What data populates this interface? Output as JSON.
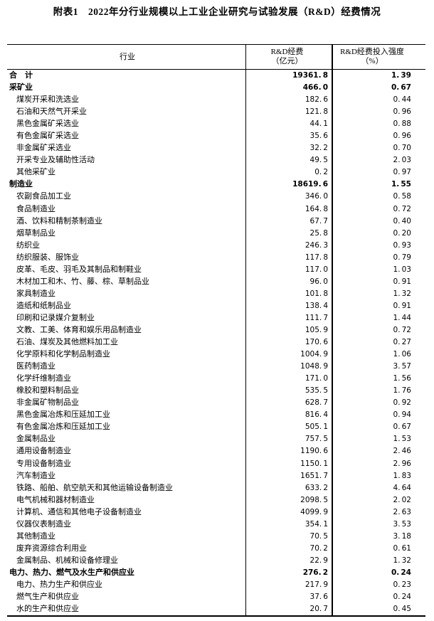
{
  "page": {
    "title": "附表1　2022年分行业规模以上工业企业研究与试验发展（R&D）经费情况"
  },
  "colors": {
    "text": "#000000",
    "border": "#000000",
    "background": "#ffffff"
  },
  "table": {
    "columns": {
      "industry": "行业",
      "expenditure_line1": "R&D经费",
      "expenditure_line2": "（亿元）",
      "intensity_line1": "R&D经费投入强度",
      "intensity_line2": "（%）"
    },
    "rows": [
      {
        "industry": "合　计",
        "expenditure": "19361.8",
        "intensity": "1.39",
        "section": true,
        "indent": 0
      },
      {
        "industry": "采矿业",
        "expenditure": "466.0",
        "intensity": "0.67",
        "section": true,
        "indent": 0
      },
      {
        "industry": "煤炭开采和洗选业",
        "expenditure": "182.6",
        "intensity": "0.44",
        "section": false,
        "indent": 1
      },
      {
        "industry": "石油和天然气开采业",
        "expenditure": "121.8",
        "intensity": "0.96",
        "section": false,
        "indent": 1
      },
      {
        "industry": "黑色金属矿采选业",
        "expenditure": "44.1",
        "intensity": "0.88",
        "section": false,
        "indent": 1
      },
      {
        "industry": "有色金属矿采选业",
        "expenditure": "35.6",
        "intensity": "0.96",
        "section": false,
        "indent": 1
      },
      {
        "industry": "非金属矿采选业",
        "expenditure": "32.2",
        "intensity": "0.70",
        "section": false,
        "indent": 1
      },
      {
        "industry": "开采专业及辅助性活动",
        "expenditure": "49.5",
        "intensity": "2.03",
        "section": false,
        "indent": 1
      },
      {
        "industry": "其他采矿业",
        "expenditure": "0.2",
        "intensity": "0.97",
        "section": false,
        "indent": 1
      },
      {
        "industry": "制造业",
        "expenditure": "18619.6",
        "intensity": "1.55",
        "section": true,
        "indent": 0
      },
      {
        "industry": "农副食品加工业",
        "expenditure": "346.0",
        "intensity": "0.58",
        "section": false,
        "indent": 1
      },
      {
        "industry": "食品制造业",
        "expenditure": "164.8",
        "intensity": "0.72",
        "section": false,
        "indent": 1
      },
      {
        "industry": "酒、饮料和精制茶制造业",
        "expenditure": "67.7",
        "intensity": "0.40",
        "section": false,
        "indent": 1
      },
      {
        "industry": "烟草制品业",
        "expenditure": "25.8",
        "intensity": "0.20",
        "section": false,
        "indent": 1
      },
      {
        "industry": "纺织业",
        "expenditure": "246.3",
        "intensity": "0.93",
        "section": false,
        "indent": 1
      },
      {
        "industry": "纺织服装、服饰业",
        "expenditure": "117.8",
        "intensity": "0.79",
        "section": false,
        "indent": 1
      },
      {
        "industry": "皮革、毛皮、羽毛及其制品和制鞋业",
        "expenditure": "117.0",
        "intensity": "1.03",
        "section": false,
        "indent": 1
      },
      {
        "industry": "木材加工和木、竹、藤、棕、草制品业",
        "expenditure": "96.0",
        "intensity": "0.91",
        "section": false,
        "indent": 1
      },
      {
        "industry": "家具制造业",
        "expenditure": "101.8",
        "intensity": "1.32",
        "section": false,
        "indent": 1
      },
      {
        "industry": "造纸和纸制品业",
        "expenditure": "138.4",
        "intensity": "0.91",
        "section": false,
        "indent": 1
      },
      {
        "industry": "印刷和记录媒介复制业",
        "expenditure": "111.7",
        "intensity": "1.44",
        "section": false,
        "indent": 1
      },
      {
        "industry": "文教、工美、体育和娱乐用品制造业",
        "expenditure": "105.9",
        "intensity": "0.72",
        "section": false,
        "indent": 1
      },
      {
        "industry": "石油、煤炭及其他燃料加工业",
        "expenditure": "170.6",
        "intensity": "0.27",
        "section": false,
        "indent": 1
      },
      {
        "industry": "化学原料和化学制品制造业",
        "expenditure": "1004.9",
        "intensity": "1.06",
        "section": false,
        "indent": 1
      },
      {
        "industry": "医药制造业",
        "expenditure": "1048.9",
        "intensity": "3.57",
        "section": false,
        "indent": 1
      },
      {
        "industry": "化学纤维制造业",
        "expenditure": "171.0",
        "intensity": "1.56",
        "section": false,
        "indent": 1
      },
      {
        "industry": "橡胶和塑料制品业",
        "expenditure": "535.5",
        "intensity": "1.76",
        "section": false,
        "indent": 1
      },
      {
        "industry": "非金属矿物制品业",
        "expenditure": "628.7",
        "intensity": "0.92",
        "section": false,
        "indent": 1
      },
      {
        "industry": "黑色金属冶炼和压延加工业",
        "expenditure": "816.4",
        "intensity": "0.94",
        "section": false,
        "indent": 1
      },
      {
        "industry": "有色金属冶炼和压延加工业",
        "expenditure": "505.1",
        "intensity": "0.67",
        "section": false,
        "indent": 1
      },
      {
        "industry": "金属制品业",
        "expenditure": "757.5",
        "intensity": "1.53",
        "section": false,
        "indent": 1
      },
      {
        "industry": "通用设备制造业",
        "expenditure": "1190.6",
        "intensity": "2.46",
        "section": false,
        "indent": 1
      },
      {
        "industry": "专用设备制造业",
        "expenditure": "1150.1",
        "intensity": "2.96",
        "section": false,
        "indent": 1
      },
      {
        "industry": "汽车制造业",
        "expenditure": "1651.7",
        "intensity": "1.83",
        "section": false,
        "indent": 1
      },
      {
        "industry": "铁路、船舶、航空航天和其他运输设备制造业",
        "expenditure": "633.2",
        "intensity": "4.64",
        "section": false,
        "indent": 1
      },
      {
        "industry": "电气机械和器材制造业",
        "expenditure": "2098.5",
        "intensity": "2.02",
        "section": false,
        "indent": 1
      },
      {
        "industry": "计算机、通信和其他电子设备制造业",
        "expenditure": "4099.9",
        "intensity": "2.63",
        "section": false,
        "indent": 1
      },
      {
        "industry": "仪器仪表制造业",
        "expenditure": "354.1",
        "intensity": "3.53",
        "section": false,
        "indent": 1
      },
      {
        "industry": "其他制造业",
        "expenditure": "70.5",
        "intensity": "3.18",
        "section": false,
        "indent": 1
      },
      {
        "industry": "废弃资源综合利用业",
        "expenditure": "70.2",
        "intensity": "0.61",
        "section": false,
        "indent": 1
      },
      {
        "industry": "金属制品、机械和设备修理业",
        "expenditure": "22.9",
        "intensity": "1.32",
        "section": false,
        "indent": 1
      },
      {
        "industry": "电力、热力、燃气及水生产和供应业",
        "expenditure": "276.2",
        "intensity": "0.24",
        "section": true,
        "indent": 0
      },
      {
        "industry": "电力、热力生产和供应业",
        "expenditure": "217.9",
        "intensity": "0.23",
        "section": false,
        "indent": 1
      },
      {
        "industry": "燃气生产和供应业",
        "expenditure": "37.6",
        "intensity": "0.24",
        "section": false,
        "indent": 1
      },
      {
        "industry": "水的生产和供应业",
        "expenditure": "20.7",
        "intensity": "0.45",
        "section": false,
        "indent": 1
      }
    ]
  }
}
